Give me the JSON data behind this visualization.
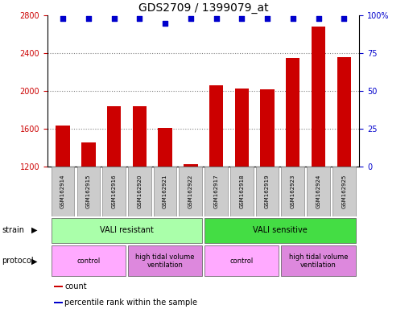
{
  "title": "GDS2709 / 1399079_at",
  "samples": [
    "GSM162914",
    "GSM162915",
    "GSM162916",
    "GSM162920",
    "GSM162921",
    "GSM162922",
    "GSM162917",
    "GSM162918",
    "GSM162919",
    "GSM162923",
    "GSM162924",
    "GSM162925"
  ],
  "counts": [
    1640,
    1460,
    1840,
    1840,
    1610,
    1230,
    2060,
    2030,
    2020,
    2350,
    2680,
    2360
  ],
  "percentile": [
    98,
    98,
    98,
    98,
    95,
    98,
    98,
    98,
    98,
    98,
    98,
    98
  ],
  "bar_color": "#cc0000",
  "dot_color": "#0000cc",
  "ylim_left": [
    1200,
    2800
  ],
  "ylim_right": [
    0,
    100
  ],
  "yticks_left": [
    1200,
    1600,
    2000,
    2400,
    2800
  ],
  "yticks_right": [
    0,
    25,
    50,
    75,
    100
  ],
  "grid_dotted_values": [
    1600,
    2000,
    2400
  ],
  "strain_groups": [
    {
      "label": "VALI resistant",
      "start": 0,
      "end": 6,
      "color": "#aaffaa"
    },
    {
      "label": "VALI sensitive",
      "start": 6,
      "end": 12,
      "color": "#44dd44"
    }
  ],
  "protocol_groups": [
    {
      "label": "control",
      "start": 0,
      "end": 3,
      "color": "#ffaaff"
    },
    {
      "label": "high tidal volume\nventilation",
      "start": 3,
      "end": 6,
      "color": "#dd88dd"
    },
    {
      "label": "control",
      "start": 6,
      "end": 9,
      "color": "#ffaaff"
    },
    {
      "label": "high tidal volume\nventilation",
      "start": 9,
      "end": 12,
      "color": "#dd88dd"
    }
  ],
  "legend_items": [
    {
      "label": "count",
      "color": "#cc0000"
    },
    {
      "label": "percentile rank within the sample",
      "color": "#0000cc"
    }
  ],
  "background_color": "#ffffff",
  "title_fontsize": 10,
  "tick_fontsize": 7,
  "sample_fontsize": 5,
  "row_label_fontsize": 7,
  "row_text_fontsize": 7,
  "legend_fontsize": 7
}
